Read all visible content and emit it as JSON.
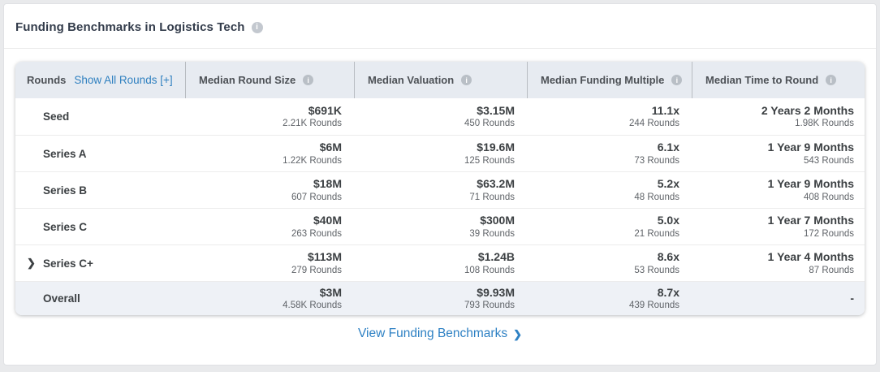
{
  "page": {
    "title": "Funding Benchmarks in Logistics Tech"
  },
  "colors": {
    "link_blue": "#2f80c0",
    "footer_link_blue": "#2e81c4",
    "header_bg": "#e7ebf1",
    "overall_row_bg": "#eef1f6",
    "value_text": "#3c4043",
    "sub_text": "#5f6368"
  },
  "icons": {
    "info": "i",
    "row_expand_chevron": "❯",
    "footer_chevron": "❯"
  },
  "table": {
    "rounds_column_label": "Rounds",
    "show_all_rounds_link": "Show All Rounds [+]",
    "columns": [
      "Median Round Size",
      "Median Valuation",
      "Median Funding Multiple",
      "Median Time to Round"
    ],
    "rows": [
      {
        "label": "Seed",
        "expandable": false,
        "overall": false,
        "cells": [
          {
            "value": "$691K",
            "sub": "2.21K Rounds"
          },
          {
            "value": "$3.15M",
            "sub": "450 Rounds"
          },
          {
            "value": "11.1x",
            "sub": "244 Rounds"
          },
          {
            "value": "2 Years 2 Months",
            "sub": "1.98K Rounds"
          }
        ]
      },
      {
        "label": "Series A",
        "expandable": false,
        "overall": false,
        "cells": [
          {
            "value": "$6M",
            "sub": "1.22K Rounds"
          },
          {
            "value": "$19.6M",
            "sub": "125 Rounds"
          },
          {
            "value": "6.1x",
            "sub": "73 Rounds"
          },
          {
            "value": "1 Year 9 Months",
            "sub": "543 Rounds"
          }
        ]
      },
      {
        "label": "Series B",
        "expandable": false,
        "overall": false,
        "cells": [
          {
            "value": "$18M",
            "sub": "607 Rounds"
          },
          {
            "value": "$63.2M",
            "sub": "71 Rounds"
          },
          {
            "value": "5.2x",
            "sub": "48 Rounds"
          },
          {
            "value": "1 Year 9 Months",
            "sub": "408 Rounds"
          }
        ]
      },
      {
        "label": "Series C",
        "expandable": false,
        "overall": false,
        "cells": [
          {
            "value": "$40M",
            "sub": "263 Rounds"
          },
          {
            "value": "$300M",
            "sub": "39 Rounds"
          },
          {
            "value": "5.0x",
            "sub": "21 Rounds"
          },
          {
            "value": "1 Year 7 Months",
            "sub": "172 Rounds"
          }
        ]
      },
      {
        "label": "Series C+",
        "expandable": true,
        "overall": false,
        "cells": [
          {
            "value": "$113M",
            "sub": "279 Rounds"
          },
          {
            "value": "$1.24B",
            "sub": "108 Rounds"
          },
          {
            "value": "8.6x",
            "sub": "53 Rounds"
          },
          {
            "value": "1 Year 4 Months",
            "sub": "87 Rounds"
          }
        ]
      },
      {
        "label": "Overall",
        "expandable": false,
        "overall": true,
        "cells": [
          {
            "value": "$3M",
            "sub": "4.58K Rounds"
          },
          {
            "value": "$9.93M",
            "sub": "793 Rounds"
          },
          {
            "value": "8.7x",
            "sub": "439 Rounds"
          },
          {
            "value": "-",
            "sub": ""
          }
        ]
      }
    ]
  },
  "footer": {
    "link_label": "View Funding Benchmarks"
  }
}
